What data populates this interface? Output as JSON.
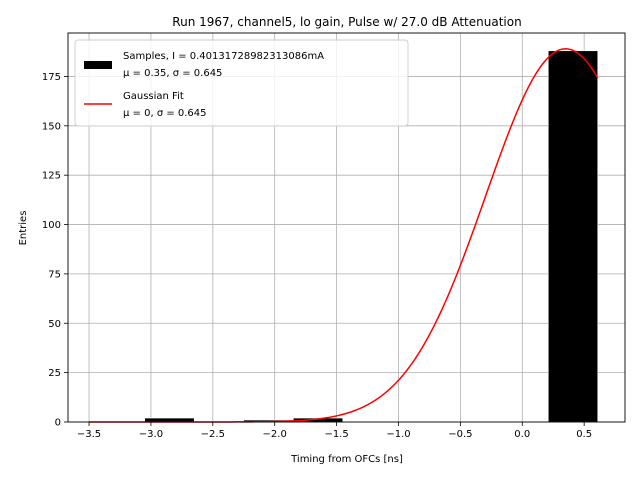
{
  "chart_data": {
    "type": "bar",
    "title": "Run 1967, channel5, lo gain, Pulse w/ 27.0 dB Attenuation",
    "xlabel": "Timing from OFCs [ns]",
    "ylabel": "Entries",
    "xlim": [
      -3.67,
      0.83
    ],
    "ylim": [
      0,
      197
    ],
    "xticks": [
      -3.5,
      -3.0,
      -2.5,
      -2.0,
      -1.5,
      -1.0,
      -0.5,
      0.0,
      0.5
    ],
    "xtick_labels": [
      "−3.5",
      "−3.0",
      "−2.5",
      "−2.0",
      "−1.5",
      "−1.0",
      "−0.5",
      "0.0",
      "0.5"
    ],
    "yticks": [
      0,
      25,
      50,
      75,
      100,
      125,
      150,
      175
    ],
    "ytick_labels": [
      "0",
      "25",
      "50",
      "75",
      "100",
      "125",
      "150",
      "175"
    ],
    "grid": true,
    "legend_position": "upper-left",
    "bars": [
      {
        "x0": -3.05,
        "x1": -2.65,
        "value": 2
      },
      {
        "x0": -2.25,
        "x1": -1.85,
        "value": 1
      },
      {
        "x0": -1.85,
        "x1": -1.45,
        "value": 2
      },
      {
        "x0": -1.45,
        "x1": -1.05,
        "value": 0.3
      },
      {
        "x0": 0.21,
        "x1": 0.61,
        "value": 188
      }
    ],
    "fit": {
      "mu": 0.35,
      "sigma": 0.645,
      "amplitude": 189,
      "xmin": -3.5,
      "xmax": 0.61
    },
    "series": [
      {
        "name": "Samples, I = 0.40131728982313086mA",
        "detail": "μ = 0.35, σ = 0.645",
        "color": "#000000"
      },
      {
        "name": "Gaussian Fit",
        "detail": "μ = 0, σ = 0.645",
        "color": "#ff0000"
      }
    ]
  }
}
